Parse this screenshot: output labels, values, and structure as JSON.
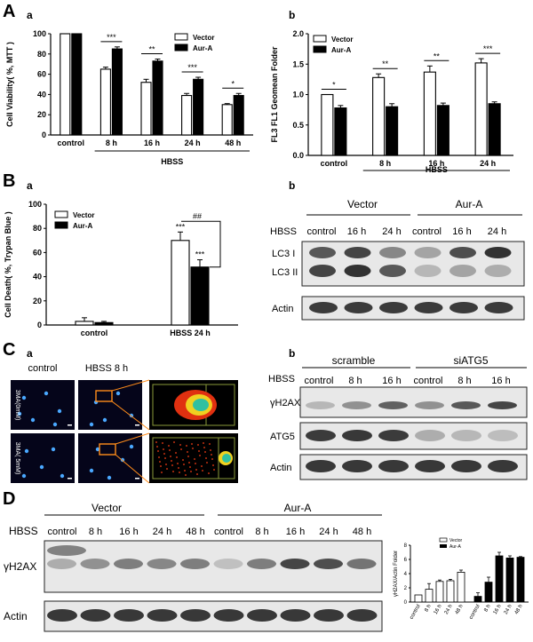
{
  "panels": {
    "A": "A",
    "B": "B",
    "C": "C",
    "D": "D",
    "a": "a",
    "b": "b"
  },
  "legend": {
    "vector": "Vector",
    "aura": "Aur-A"
  },
  "charts": [
    {
      "id": "Aa",
      "type": "bar",
      "ylabel": "Cell Viability( %, MTT )",
      "ylim": [
        0,
        100
      ],
      "yticks": [
        0,
        20,
        40,
        60,
        80,
        100
      ],
      "categories": [
        "control",
        "8 h",
        "16 h",
        "24 h",
        "48 h"
      ],
      "group_label": "HBSS",
      "series": [
        {
          "name": "Vector",
          "values": [
            100,
            65,
            52,
            39,
            30
          ],
          "errors": [
            0,
            2,
            3,
            2,
            1
          ]
        },
        {
          "name": "Aur-A",
          "values": [
            100,
            85,
            73,
            55,
            39
          ],
          "errors": [
            0,
            2,
            2,
            2,
            2
          ]
        }
      ],
      "sig": [
        "",
        "***",
        "**",
        "***",
        "*"
      ]
    },
    {
      "id": "Ab",
      "type": "bar",
      "ylabel": "FL3 FL1 Geomean Folder",
      "ylim": [
        0,
        2.0
      ],
      "yticks": [
        "0.0",
        "0.5",
        "1.0",
        "1.5",
        "2.0"
      ],
      "categories": [
        "control",
        "8 h",
        "16 h",
        "24 h"
      ],
      "group_label": "HBSS",
      "series": [
        {
          "name": "Vector",
          "values": [
            1.0,
            1.28,
            1.37,
            1.52
          ],
          "errors": [
            0,
            0.06,
            0.1,
            0.07
          ]
        },
        {
          "name": "Aur-A",
          "values": [
            0.78,
            0.8,
            0.82,
            0.85
          ],
          "errors": [
            0.04,
            0.05,
            0.04,
            0.03
          ]
        }
      ],
      "sig": [
        "*",
        "**",
        "**",
        "***"
      ]
    },
    {
      "id": "Ba",
      "type": "bar",
      "ylabel": "Cell Death( %, Trypan Blue )",
      "ylim": [
        0,
        100
      ],
      "yticks": [
        0,
        20,
        40,
        60,
        80,
        100
      ],
      "categories": [
        "control",
        "HBSS 24 h"
      ],
      "series": [
        {
          "name": "Vector",
          "values": [
            3,
            70
          ],
          "errors": [
            3,
            7
          ]
        },
        {
          "name": "Aur-A",
          "values": [
            2,
            48
          ],
          "errors": [
            1,
            6
          ]
        }
      ],
      "stars": [
        "***",
        "***"
      ],
      "hash": "##"
    },
    {
      "id": "Dc",
      "type": "bar",
      "ylabel": "γH2AX/Actin Folder",
      "ylim": [
        0,
        8
      ],
      "yticks": [
        0,
        2,
        4,
        6,
        8
      ],
      "categories": [
        "control",
        "8 h",
        "16 h",
        "24 h",
        "48 h"
      ],
      "series": [
        {
          "name": "Vector",
          "values": [
            1.0,
            1.8,
            2.9,
            3.0,
            4.2
          ],
          "errors": [
            0,
            0.8,
            0.2,
            0.2,
            0.3
          ]
        },
        {
          "name": "Aur-A",
          "values": [
            0.8,
            2.8,
            6.5,
            6.2,
            6.3
          ],
          "errors": [
            0.5,
            0.7,
            0.5,
            0.3,
            0.1
          ]
        }
      ]
    }
  ],
  "blots": {
    "Bb": {
      "hbss": "HBSS",
      "groups": [
        "Vector",
        "Aur-A"
      ],
      "lanes": [
        "control",
        "16 h",
        "24 h",
        "control",
        "16 h",
        "24 h"
      ],
      "rows": [
        {
          "label": "LC3  I",
          "label2": "LC3 II"
        },
        {
          "label": "Actin"
        }
      ],
      "intensity_lc3i": [
        0.75,
        0.85,
        0.5,
        0.35,
        0.8,
        0.95
      ],
      "intensity_lc3ii": [
        0.85,
        0.95,
        0.75,
        0.25,
        0.35,
        0.3
      ]
    },
    "Cb": {
      "hbss": "HBSS",
      "groups": [
        "scramble",
        "siATG5"
      ],
      "lanes": [
        "control",
        "8 h",
        "16 h",
        "control",
        "8 h",
        "16 h"
      ],
      "rows": [
        "γH2AX",
        "ATG5",
        "Actin"
      ],
      "intensity_h2ax": [
        0.25,
        0.45,
        0.7,
        0.45,
        0.75,
        0.85
      ],
      "intensity_atg5": [
        0.9,
        0.92,
        0.9,
        0.3,
        0.25,
        0.22
      ]
    },
    "D": {
      "hbss": "HBSS",
      "groups": [
        "Vector",
        "Aur-A"
      ],
      "lanes": [
        "control",
        "8 h",
        "16 h",
        "24 h",
        "48 h",
        "control",
        "8 h",
        "16 h",
        "24 h",
        "48 h"
      ],
      "rows": [
        "γH2AX",
        "Actin"
      ],
      "intensity_h2ax": [
        0.3,
        0.45,
        0.55,
        0.5,
        0.55,
        0.2,
        0.55,
        0.85,
        0.8,
        0.6
      ]
    }
  },
  "micro": {
    "labels": [
      "control",
      "HBSS  8 h"
    ],
    "rows": [
      "3MA(0mM)",
      "3MA( 5mM)"
    ]
  }
}
